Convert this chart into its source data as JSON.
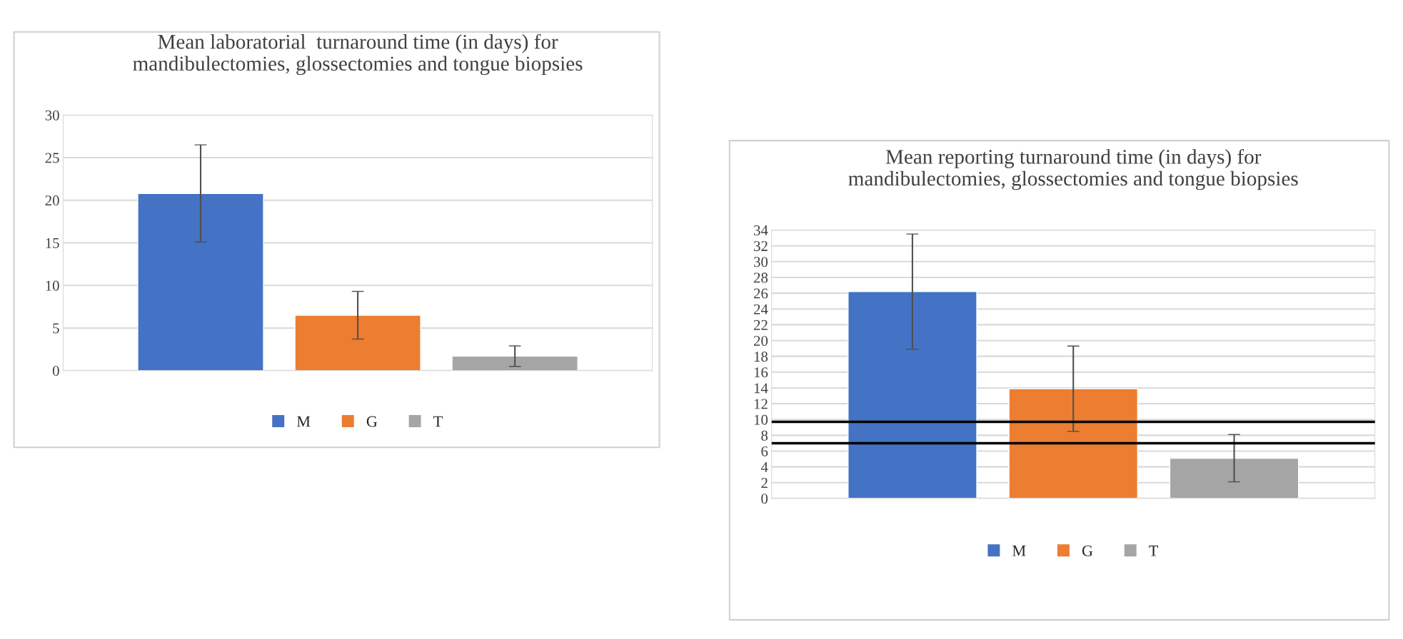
{
  "chart_data": [
    {
      "type": "bar",
      "title": "Mean laboratorial  turnaround time (in days) for\nmandibulectomies, glossectomies and tongue biopsies",
      "categories": [
        null
      ],
      "series": [
        {
          "name": "M",
          "color": "#4472c4",
          "values": [
            20.8
          ],
          "errors": [
            5.7
          ]
        },
        {
          "name": "G",
          "color": "#ed7d31",
          "values": [
            6.5
          ],
          "errors": [
            2.8
          ]
        },
        {
          "name": "T",
          "color": "#a5a5a5",
          "values": [
            1.7
          ],
          "errors": [
            1.2
          ]
        }
      ],
      "ylim": [
        0,
        30
      ],
      "yticks": [
        0,
        5,
        10,
        15,
        20,
        25,
        30
      ],
      "grid": "y",
      "legend": "bottom"
    },
    {
      "type": "bar",
      "title": "Mean reporting turnaround time (in days) for\nmandibulectomies, glossectomies and tongue biopsies",
      "categories": [
        null
      ],
      "series": [
        {
          "name": "M",
          "color": "#4472c4",
          "values": [
            26.2
          ],
          "errors": [
            7.3
          ]
        },
        {
          "name": "G",
          "color": "#ed7d31",
          "values": [
            13.9
          ],
          "errors": [
            5.4
          ]
        },
        {
          "name": "T",
          "color": "#a5a5a5",
          "values": [
            5.1
          ],
          "errors": [
            3.0
          ]
        }
      ],
      "ylim": [
        0,
        34
      ],
      "yticks": [
        0,
        2,
        4,
        6,
        8,
        10,
        12,
        14,
        16,
        18,
        20,
        22,
        24,
        26,
        28,
        30,
        32,
        34
      ],
      "grid": "y",
      "legend": "bottom",
      "ref_lines": [
        {
          "axis": "y",
          "value": 9.7,
          "color": "#000000"
        },
        {
          "axis": "y",
          "value": 7.0,
          "color": "#000000"
        }
      ]
    }
  ]
}
